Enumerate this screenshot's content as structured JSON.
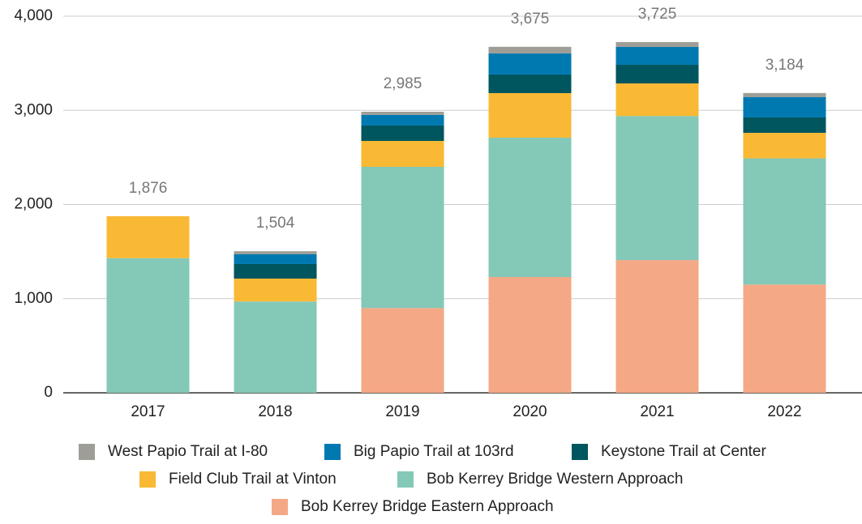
{
  "chart_data": {
    "type": "stacked-bar",
    "categories": [
      "2017",
      "2018",
      "2019",
      "2020",
      "2021",
      "2022"
    ],
    "series": [
      {
        "name": "West Papio Trail at I-80",
        "color": "#9e9e97",
        "values": [
          null,
          33,
          34,
          71,
          52,
          44
        ]
      },
      {
        "name": "Big Papio Trail at 103rd",
        "color": "#0079b1",
        "values": [
          null,
          103,
          112,
          223,
          189,
          215
        ]
      },
      {
        "name": "Keystone Trail at Center",
        "color": "#00565e",
        "values": [
          null,
          155,
          164,
          198,
          198,
          164
        ]
      },
      {
        "name": "Field Club Trail at Vinton",
        "color": "#f9b935",
        "values": [
          446,
          243,
          275,
          473,
          346,
          271
        ]
      },
      {
        "name": "Bob Kerrey Bridge Western Approach",
        "color": "#84c8b8",
        "values": [
          1430,
          970,
          1500,
          1480,
          1530,
          1340
        ]
      },
      {
        "name": "Bob Kerrey Bridge Eastern Approach",
        "color": "#f4a886",
        "values": [
          null,
          null,
          900,
          1230,
          1410,
          1150
        ]
      }
    ],
    "totals": {
      "values": [
        1876,
        1504,
        2985,
        3675,
        3725,
        3184
      ],
      "value_labels": [
        "1,876",
        "1,504",
        "2,985",
        "3,675",
        "3,725",
        "3,184"
      ]
    },
    "ylim": [
      0,
      4000
    ],
    "yticks": [
      0,
      {
        "value": 1000,
        "label": "1,000"
      },
      {
        "value": 2000,
        "label": "2,000"
      },
      {
        "value": 3000,
        "label": "3,000"
      },
      {
        "value": 4000,
        "label": "4,000"
      }
    ],
    "grid": true
  }
}
